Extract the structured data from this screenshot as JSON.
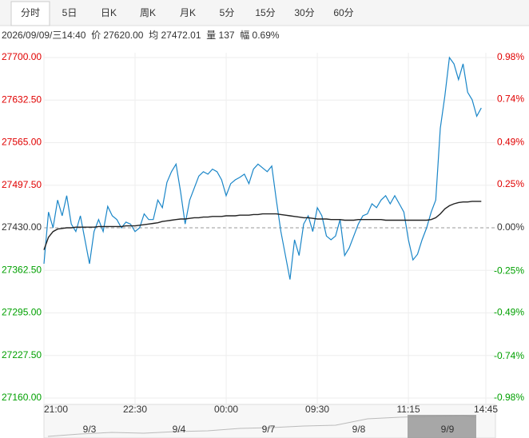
{
  "tabs": [
    "分时",
    "5日",
    "日K",
    "周K",
    "月K",
    "5分",
    "15分",
    "30分",
    "60分"
  ],
  "info": "2026/09/09/三14:40  价 27620.00  均 27472.01  量 137  幅 0.69%",
  "navigator": {
    "dates": [
      "9/3",
      "9/4",
      "9/7",
      "9/8",
      "9/9"
    ]
  },
  "chart_data": {
    "type": "line",
    "x": [
      0,
      1,
      2,
      3,
      4,
      5,
      6,
      7,
      8,
      9,
      10,
      11,
      12,
      13,
      14,
      15,
      16,
      17,
      18,
      19,
      20,
      21,
      22,
      23,
      24,
      25,
      26,
      27,
      28,
      29,
      30,
      31,
      32,
      33,
      34,
      35,
      36,
      37,
      38,
      39,
      40,
      41,
      42,
      43,
      44,
      45,
      46,
      47,
      48,
      49,
      50,
      51,
      52,
      53,
      54,
      55,
      56,
      57,
      58,
      59,
      60,
      61,
      62,
      63,
      64,
      65,
      66,
      67,
      68,
      69,
      70,
      71,
      72,
      73,
      74,
      75,
      76,
      77,
      78,
      79,
      80,
      81,
      82,
      83,
      84,
      85,
      86,
      87,
      88,
      89,
      90,
      91,
      92,
      93,
      94,
      95,
      96
    ],
    "series": [
      {
        "name": "价",
        "color": "#1a86c8",
        "values": [
          27373,
          27455,
          27430,
          27474,
          27449,
          27481,
          27436,
          27424,
          27449,
          27411,
          27373,
          27424,
          27443,
          27424,
          27464,
          27449,
          27443,
          27430,
          27439,
          27436,
          27424,
          27430,
          27452,
          27443,
          27443,
          27474,
          27462,
          27502,
          27519,
          27531,
          27487,
          27436,
          27474,
          27493,
          27512,
          27519,
          27515,
          27523,
          27519,
          27506,
          27481,
          27500,
          27506,
          27510,
          27515,
          27500,
          27523,
          27531,
          27525,
          27519,
          27528,
          27474,
          27424,
          27386,
          27348,
          27411,
          27386,
          27436,
          27449,
          27424,
          27462,
          27449,
          27417,
          27411,
          27417,
          27443,
          27386,
          27398,
          27417,
          27436,
          27449,
          27452,
          27468,
          27462,
          27474,
          27481,
          27468,
          27481,
          27468,
          27455,
          27411,
          27379,
          27388,
          27411,
          27430,
          27455,
          27474,
          27588,
          27639,
          27700,
          27690,
          27665,
          27690,
          27645,
          27633,
          27607,
          27620
        ]
      },
      {
        "name": "均",
        "color": "#222222",
        "values": [
          27395,
          27415,
          27424,
          27428,
          27429,
          27430,
          27430,
          27431,
          27431,
          27431,
          27431,
          27431,
          27432,
          27432,
          27432,
          27432,
          27432,
          27432,
          27433,
          27433,
          27433,
          27434,
          27435,
          27436,
          27437,
          27438,
          27440,
          27441,
          27442,
          27443,
          27444,
          27444,
          27445,
          27446,
          27446,
          27447,
          27447,
          27448,
          27448,
          27448,
          27449,
          27449,
          27449,
          27450,
          27450,
          27450,
          27451,
          27451,
          27452,
          27452,
          27452,
          27452,
          27451,
          27450,
          27449,
          27448,
          27447,
          27446,
          27446,
          27445,
          27444,
          27444,
          27444,
          27443,
          27443,
          27443,
          27442,
          27442,
          27442,
          27443,
          27443,
          27443,
          27443,
          27443,
          27443,
          27442,
          27442,
          27442,
          27442,
          27442,
          27442,
          27442,
          27442,
          27442,
          27442,
          27443,
          27446,
          27452,
          27460,
          27465,
          27468,
          27470,
          27471,
          27471,
          27472,
          27472,
          27472
        ]
      }
    ],
    "xlim": [
      0,
      97
    ],
    "xticks": [
      {
        "value": 0,
        "label": "21:00"
      },
      {
        "value": 20,
        "label": "22:30"
      },
      {
        "value": 40,
        "label": "00:00"
      },
      {
        "value": 60,
        "label": "09:30"
      },
      {
        "value": 80,
        "label": "11:15"
      },
      {
        "value": 97,
        "label": "14:45"
      }
    ],
    "ylim": [
      27160,
      27700
    ],
    "yticks": [
      {
        "value": 27700,
        "label": "27700.00"
      },
      {
        "value": 27632.5,
        "label": "27632.50"
      },
      {
        "value": 27565,
        "label": "27565.00"
      },
      {
        "value": 27497.5,
        "label": "27497.50"
      },
      {
        "value": 27430,
        "label": "27430.00"
      },
      {
        "value": 27362.5,
        "label": "27362.50"
      },
      {
        "value": 27295,
        "label": "27295.00"
      },
      {
        "value": 27227.5,
        "label": "27227.50"
      },
      {
        "value": 27160,
        "label": "27160.00"
      }
    ],
    "y2lim": [
      -0.98,
      0.98
    ],
    "y2ticks": [
      {
        "value": 0.98,
        "label": "0.98%"
      },
      {
        "value": 0.74,
        "label": "0.74%"
      },
      {
        "value": 0.49,
        "label": "0.49%"
      },
      {
        "value": 0.25,
        "label": "0.25%"
      },
      {
        "value": 0,
        "label": "0.00%"
      },
      {
        "value": -0.25,
        "label": "-0.25%"
      },
      {
        "value": -0.49,
        "label": "-0.49%"
      },
      {
        "value": -0.74,
        "label": "-0.74%"
      },
      {
        "value": -0.98,
        "label": "-0.98%"
      }
    ],
    "grid": true
  }
}
